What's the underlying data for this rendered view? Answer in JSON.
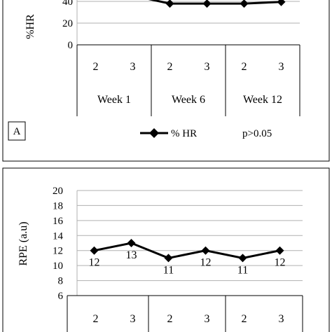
{
  "chart_data": [
    {
      "type": "line",
      "panel_label": "A",
      "ylabel": "%HR",
      "yticks_visible": [
        0,
        20,
        40
      ],
      "sessions": [
        "2",
        "3",
        "2",
        "3",
        "2",
        "3"
      ],
      "groups": [
        "Week 1",
        "Week 6",
        "Week 12"
      ],
      "series": [
        {
          "name": "% HR",
          "values": [
            null,
            null,
            38,
            38,
            38,
            39.5
          ]
        }
      ],
      "legend_position": "bottom-center",
      "annotation": "p>0.05"
    },
    {
      "type": "line",
      "ylabel": "RPE (a.u)",
      "ylim": [
        6,
        20
      ],
      "yticks": [
        6,
        8,
        10,
        12,
        14,
        16,
        18,
        20
      ],
      "sessions": [
        "2",
        "3",
        "2",
        "3",
        "2",
        "3"
      ],
      "series": [
        {
          "values": [
            12,
            13,
            11,
            12,
            11,
            12
          ]
        }
      ],
      "data_labels": [
        "12",
        "13",
        "11",
        "12",
        "11",
        "12"
      ]
    }
  ]
}
